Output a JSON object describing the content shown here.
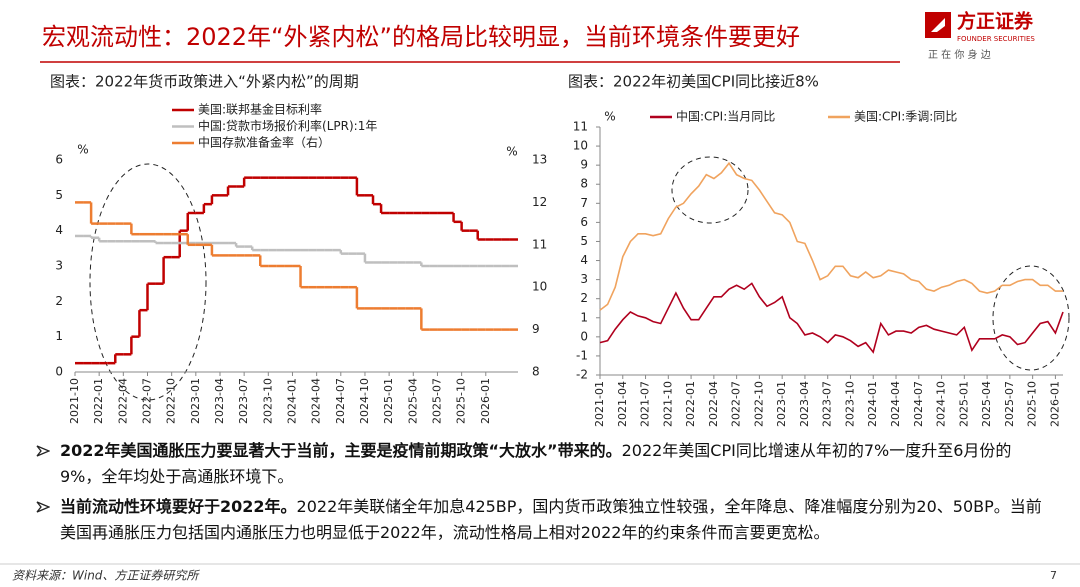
{
  "header": {
    "title": "宏观流动性：2022年“外紧内松”的格局比较明显，当前环境条件要更好",
    "logo_name": "方正证券",
    "logo_en": "FOUNDER SECURITIES",
    "slogan": "正 在 你 身 边"
  },
  "chart_data": [
    {
      "type": "line",
      "step": true,
      "title": "图表：2022年货币政策进入“外紧内松”的周期",
      "ylabel": "%",
      "y2label": "%",
      "categories": [
        "2021-10",
        null,
        null,
        "2022-01",
        null,
        null,
        "2022-04",
        null,
        null,
        "2022-07",
        null,
        null,
        "2022-10",
        null,
        null,
        "2023-01",
        null,
        null,
        "2023-04",
        null,
        null,
        "2023-07",
        null,
        null,
        "2023-10",
        null,
        null,
        "2024-01",
        null,
        null,
        "2024-04",
        null,
        null,
        "2024-07",
        null,
        null,
        "2024-10",
        null,
        null,
        "2025-01",
        null,
        null,
        "2025-04",
        null,
        null,
        "2025-07",
        null,
        null,
        "2025-10",
        null,
        null,
        "2026-01",
        null,
        null,
        null
      ],
      "ylim": [
        0,
        6
      ],
      "yticks": [
        0,
        1,
        2,
        3,
        4,
        5,
        6
      ],
      "y2lim": [
        8,
        13
      ],
      "y2ticks": [
        8,
        9,
        10,
        11,
        12,
        13
      ],
      "series": [
        {
          "name": "美国:联邦基金目标利率",
          "color": "#c00000",
          "values": [
            0.25,
            0.25,
            0.25,
            0.25,
            0.25,
            0.5,
            0.5,
            1,
            1.75,
            2.5,
            2.5,
            3.25,
            3.25,
            4,
            4.5,
            4.5,
            4.75,
            5,
            5,
            5.25,
            5.25,
            5.5,
            5.5,
            5.5,
            5.5,
            5.5,
            5.5,
            5.5,
            5.5,
            5.5,
            5.5,
            5.5,
            5.5,
            5.5,
            5.5,
            5,
            5,
            4.75,
            4.5,
            4.5,
            4.5,
            4.5,
            4.5,
            4.5,
            4.5,
            4.5,
            4.5,
            4.25,
            4,
            4,
            3.75,
            3.75,
            3.75,
            3.75,
            3.75
          ]
        },
        {
          "name": "中国:贷款市场报价利率(LPR):1年",
          "color": "#bfbfbf",
          "values": [
            3.85,
            3.85,
            3.8,
            3.7,
            3.7,
            3.7,
            3.7,
            3.7,
            3.7,
            3.7,
            3.65,
            3.65,
            3.65,
            3.65,
            3.65,
            3.65,
            3.65,
            3.65,
            3.65,
            3.65,
            3.55,
            3.55,
            3.45,
            3.45,
            3.45,
            3.45,
            3.45,
            3.45,
            3.45,
            3.45,
            3.45,
            3.45,
            3.45,
            3.35,
            3.35,
            3.35,
            3.1,
            3.1,
            3.1,
            3.1,
            3.1,
            3.1,
            3.1,
            3,
            3,
            3,
            3,
            3,
            3,
            3,
            3,
            3,
            3,
            3,
            3
          ]
        },
        {
          "name": "中国存款准备金率（右）",
          "color": "#ed7d31",
          "axis": "y2",
          "values": [
            12,
            12,
            11.5,
            11.5,
            11.5,
            11.5,
            11.5,
            11.25,
            11.25,
            11.25,
            11.25,
            11.25,
            11.25,
            11.25,
            11,
            11,
            11,
            10.75,
            10.75,
            10.75,
            10.75,
            10.75,
            10.75,
            10.5,
            10.5,
            10.5,
            10.5,
            10.5,
            10,
            10,
            10,
            10,
            10,
            10,
            10,
            9.5,
            9.5,
            9.5,
            9.5,
            9.5,
            9.5,
            9.5,
            9.5,
            9,
            9,
            9,
            9,
            9,
            9,
            9,
            9,
            9,
            9,
            9,
            9
          ]
        }
      ]
    },
    {
      "type": "line",
      "title": "图表：2022年初美国CPI同比接近8%",
      "ylabel": "%",
      "categories": [
        "2021-01",
        null,
        null,
        "2021-04",
        null,
        null,
        "2021-07",
        null,
        null,
        "2021-10",
        null,
        null,
        "2022-01",
        null,
        null,
        "2022-04",
        null,
        null,
        "2022-07",
        null,
        null,
        "2022-10",
        null,
        null,
        "2023-01",
        null,
        null,
        "2023-04",
        null,
        null,
        "2023-07",
        null,
        null,
        "2023-10",
        null,
        null,
        "2024-01",
        null,
        null,
        "2024-04",
        null,
        null,
        "2024-07",
        null,
        null,
        "2024-10",
        null,
        null,
        "2025-01",
        null,
        null,
        "2025-04",
        null,
        null,
        "2025-07",
        null,
        null,
        "2025-10",
        null,
        null,
        "2026-01",
        null
      ],
      "ylim": [
        -2,
        11
      ],
      "yticks": [
        -2,
        -1,
        0,
        1,
        2,
        3,
        4,
        5,
        6,
        7,
        8,
        9,
        10,
        11
      ],
      "series": [
        {
          "name": "中国:CPI:当月同比",
          "color": "#b0001e",
          "values": [
            -0.3,
            -0.2,
            0.4,
            0.9,
            1.3,
            1.1,
            1,
            0.8,
            0.7,
            1.5,
            2.3,
            1.5,
            0.9,
            0.9,
            1.5,
            2.1,
            2.1,
            2.5,
            2.7,
            2.5,
            2.8,
            2.1,
            1.6,
            1.8,
            2.1,
            1,
            0.7,
            0.1,
            0.2,
            0,
            -0.3,
            0.1,
            0,
            -0.2,
            -0.5,
            -0.3,
            -0.8,
            0.7,
            0.1,
            0.3,
            0.3,
            0.2,
            0.5,
            0.6,
            0.4,
            0.3,
            0.2,
            0.1,
            0.5,
            -0.7,
            -0.1,
            -0.1,
            -0.1,
            0.1,
            0,
            -0.4,
            -0.3,
            0.2,
            0.7,
            0.8,
            0.2,
            1.3
          ]
        },
        {
          "name": "美国:CPI:季调:同比",
          "color": "#f0a35e",
          "values": [
            1.4,
            1.7,
            2.6,
            4.2,
            5,
            5.4,
            5.4,
            5.3,
            5.4,
            6.2,
            6.8,
            7,
            7.5,
            7.9,
            8.5,
            8.3,
            8.6,
            9.1,
            8.5,
            8.3,
            8.2,
            7.7,
            7.1,
            6.5,
            6.4,
            6,
            5,
            4.9,
            4,
            3,
            3.2,
            3.7,
            3.7,
            3.2,
            3.1,
            3.4,
            3.1,
            3.2,
            3.5,
            3.4,
            3.3,
            3,
            2.9,
            2.5,
            2.4,
            2.6,
            2.7,
            2.9,
            3,
            2.8,
            2.4,
            2.3,
            2.4,
            2.7,
            2.7,
            2.9,
            3,
            3,
            2.7,
            2.7,
            2.4,
            2.4
          ]
        }
      ]
    }
  ],
  "bullets": [
    {
      "bold": "2022年美国通胀压力要显著大于当前，主要是疫情前期政策“大放水”带来的。",
      "text": "2022年美国CPI同比增速从年初的7%一度升至6月份的9%，全年均处于高通胀环境下。"
    },
    {
      "bold": "当前流动性环境要好于2022年。",
      "text": "2022年美联储全年加息425BP，国内货币政策独立性较强，全年降息、降准幅度分别为20、50BP。当前美国再通胀压力包括国内通胀压力也明显低于2022年，流动性格局上相对2022年的约束条件而言要更宽松。"
    }
  ],
  "footer": {
    "source": "资料来源：Wind、方正证券研究所",
    "page": "7"
  }
}
